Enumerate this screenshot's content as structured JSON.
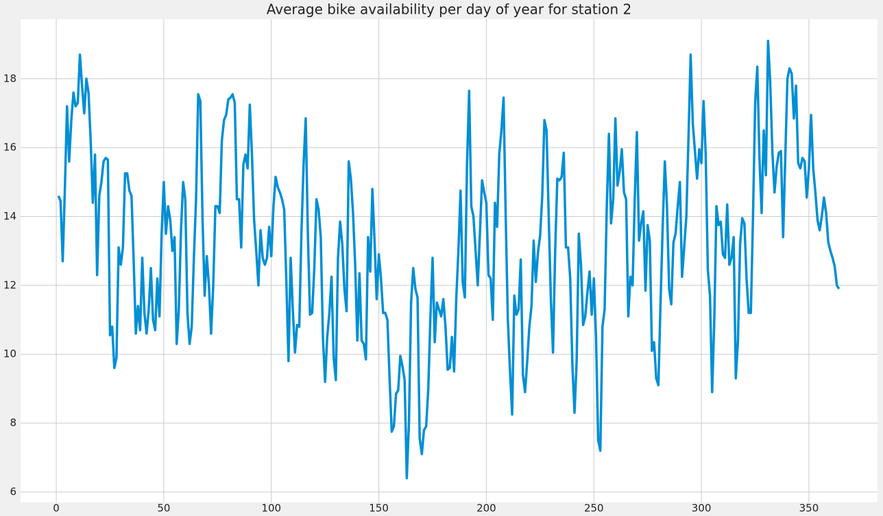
{
  "chart_data": {
    "type": "line",
    "title": "Average bike availability per day of year for station 2",
    "x": [
      1,
      2,
      3,
      4,
      5,
      6,
      7,
      8,
      9,
      10,
      11,
      12,
      13,
      14,
      15,
      16,
      17,
      18,
      19,
      20,
      21,
      22,
      23,
      24,
      25,
      26,
      27,
      28,
      29,
      30,
      31,
      32,
      33,
      34,
      35,
      36,
      37,
      38,
      39,
      40,
      41,
      42,
      43,
      44,
      45,
      46,
      47,
      48,
      49,
      50,
      51,
      52,
      53,
      54,
      55,
      56,
      57,
      58,
      59,
      60,
      61,
      62,
      63,
      64,
      65,
      66,
      67,
      68,
      69,
      70,
      71,
      72,
      73,
      74,
      75,
      76,
      77,
      78,
      79,
      80,
      81,
      82,
      83,
      84,
      85,
      86,
      87,
      88,
      89,
      90,
      91,
      92,
      93,
      94,
      95,
      96,
      97,
      98,
      99,
      100,
      101,
      102,
      103,
      104,
      105,
      106,
      107,
      108,
      109,
      110,
      111,
      112,
      113,
      114,
      115,
      116,
      117,
      118,
      119,
      120,
      121,
      122,
      123,
      124,
      125,
      126,
      127,
      128,
      129,
      130,
      131,
      132,
      133,
      134,
      135,
      136,
      137,
      138,
      139,
      140,
      141,
      142,
      143,
      144,
      145,
      146,
      147,
      148,
      149,
      150,
      151,
      152,
      153,
      154,
      155,
      156,
      157,
      158,
      159,
      160,
      161,
      162,
      163,
      164,
      165,
      166,
      167,
      168,
      169,
      170,
      171,
      172,
      173,
      174,
      175,
      176,
      177,
      178,
      179,
      180,
      181,
      182,
      183,
      184,
      185,
      186,
      187,
      188,
      189,
      190,
      191,
      192,
      193,
      194,
      195,
      196,
      197,
      198,
      199,
      200,
      201,
      202,
      203,
      204,
      205,
      206,
      207,
      208,
      209,
      210,
      211,
      212,
      213,
      214,
      215,
      216,
      217,
      218,
      219,
      220,
      221,
      222,
      223,
      224,
      225,
      226,
      227,
      228,
      229,
      230,
      231,
      232,
      233,
      234,
      235,
      236,
      237,
      238,
      239,
      240,
      241,
      242,
      243,
      244,
      245,
      246,
      247,
      248,
      249,
      250,
      251,
      252,
      253,
      254,
      255,
      256,
      257,
      258,
      259,
      260,
      261,
      262,
      263,
      264,
      265,
      266,
      267,
      268,
      269,
      270,
      271,
      272,
      273,
      274,
      275,
      276,
      277,
      278,
      279,
      280,
      281,
      282,
      283,
      284,
      285,
      286,
      287,
      288,
      289,
      290,
      291,
      292,
      293,
      294,
      295,
      296,
      297,
      298,
      299,
      300,
      301,
      302,
      303,
      304,
      305,
      306,
      307,
      308,
      309,
      310,
      311,
      312,
      313,
      314,
      315,
      316,
      317,
      318,
      319,
      320,
      321,
      322,
      323,
      324,
      325,
      326,
      327,
      328,
      329,
      330,
      331,
      332,
      333,
      334,
      335,
      336,
      337,
      338,
      339,
      340,
      341,
      342,
      343,
      344,
      345,
      346,
      347,
      348,
      349,
      350,
      351,
      352,
      353,
      354,
      355,
      356,
      357,
      358,
      359,
      360,
      361,
      362,
      363,
      364
    ],
    "series": [
      {
        "color": "#008fd5",
        "values": [
          14.6,
          14.45,
          12.7,
          14.8,
          17.2,
          15.6,
          16.8,
          17.6,
          17.2,
          17.3,
          18.7,
          17.8,
          17.0,
          18.0,
          17.6,
          16.2,
          14.4,
          15.8,
          12.3,
          14.6,
          15.0,
          15.6,
          15.7,
          15.65,
          10.55,
          10.8,
          9.6,
          9.9,
          13.1,
          12.6,
          13.1,
          15.25,
          15.25,
          14.75,
          14.6,
          12.7,
          10.6,
          11.4,
          10.7,
          12.8,
          11.2,
          10.6,
          11.3,
          12.5,
          11.0,
          10.7,
          12.2,
          11.1,
          13.5,
          15.0,
          13.5,
          14.3,
          13.9,
          13.0,
          13.4,
          10.3,
          11.3,
          13.6,
          15.0,
          14.5,
          11.2,
          10.3,
          10.8,
          12.8,
          14.5,
          17.55,
          17.35,
          14.0,
          11.7,
          12.85,
          12.0,
          10.6,
          12.0,
          14.3,
          14.3,
          14.1,
          16.2,
          16.8,
          16.95,
          17.4,
          17.45,
          17.55,
          17.3,
          14.5,
          14.5,
          13.1,
          15.5,
          15.8,
          15.4,
          17.25,
          15.8,
          13.9,
          13.0,
          12.0,
          13.6,
          12.8,
          12.6,
          12.8,
          13.7,
          12.85,
          14.3,
          15.15,
          14.85,
          14.7,
          14.5,
          14.2,
          12.1,
          9.8,
          12.8,
          11.3,
          10.05,
          10.85,
          10.8,
          13.5,
          15.5,
          16.85,
          13.5,
          11.15,
          11.2,
          12.5,
          14.5,
          14.2,
          13.4,
          10.5,
          9.2,
          10.5,
          11.2,
          12.25,
          9.9,
          9.25,
          12.8,
          13.85,
          13.2,
          11.9,
          11.25,
          15.6,
          15.1,
          14.1,
          12.6,
          10.4,
          12.35,
          10.4,
          10.3,
          9.85,
          13.4,
          12.4,
          14.8,
          13.3,
          11.6,
          12.9,
          12.2,
          11.2,
          11.2,
          11.0,
          9.3,
          7.75,
          7.9,
          8.85,
          8.95,
          9.95,
          9.65,
          9.25,
          6.4,
          8.0,
          11.5,
          12.5,
          11.9,
          11.65,
          7.55,
          7.1,
          7.8,
          7.9,
          9.0,
          11.1,
          12.8,
          10.35,
          11.5,
          11.3,
          11.1,
          11.6,
          10.8,
          9.55,
          9.6,
          10.5,
          9.5,
          11.6,
          13.0,
          14.75,
          12.1,
          11.65,
          15.5,
          17.65,
          14.3,
          14.0,
          13.0,
          12.0,
          13.5,
          15.05,
          14.7,
          14.4,
          12.3,
          12.2,
          11.0,
          14.4,
          13.7,
          15.8,
          16.5,
          17.45,
          14.0,
          11.0,
          9.5,
          8.25,
          11.7,
          11.15,
          11.3,
          12.75,
          9.4,
          8.9,
          9.8,
          10.8,
          11.4,
          13.3,
          12.1,
          12.95,
          13.45,
          14.6,
          16.8,
          16.5,
          14.0,
          11.6,
          10.05,
          13.0,
          15.1,
          15.05,
          15.15,
          15.85,
          13.1,
          13.1,
          12.2,
          9.7,
          8.3,
          9.8,
          13.5,
          12.6,
          10.85,
          11.1,
          11.8,
          12.4,
          11.15,
          12.2,
          10.5,
          7.5,
          7.2,
          10.8,
          11.3,
          14.3,
          16.4,
          13.8,
          14.5,
          16.85,
          14.9,
          15.3,
          15.95,
          14.7,
          14.5,
          11.1,
          12.25,
          12.0,
          14.5,
          16.45,
          13.3,
          13.8,
          14.15,
          11.85,
          13.75,
          13.3,
          10.1,
          10.35,
          9.3,
          9.1,
          11.5,
          13.7,
          15.6,
          14.3,
          11.9,
          11.45,
          13.25,
          13.5,
          14.3,
          15.0,
          12.25,
          13.1,
          14.0,
          16.3,
          18.7,
          16.7,
          15.9,
          15.1,
          15.95,
          15.55,
          17.35,
          15.8,
          12.45,
          11.7,
          8.9,
          11.0,
          14.3,
          13.75,
          13.85,
          12.9,
          12.8,
          14.35,
          12.6,
          12.8,
          13.4,
          9.3,
          10.4,
          13.2,
          13.95,
          13.8,
          12.2,
          11.2,
          11.2,
          14.0,
          17.3,
          18.35,
          15.7,
          14.1,
          16.5,
          15.2,
          19.1,
          17.9,
          15.9,
          14.7,
          15.45,
          15.85,
          15.9,
          13.4,
          15.7,
          18.0,
          18.3,
          18.15,
          16.85,
          17.8,
          15.55,
          15.4,
          15.7,
          15.6,
          14.55,
          15.4,
          16.95,
          15.4,
          14.7,
          13.9,
          13.6,
          14.0,
          14.55,
          14.1,
          13.25,
          13.0,
          12.8,
          12.55,
          12.0,
          11.9
        ]
      }
    ],
    "xlim": [
      -16.6,
      381.9
    ],
    "ylim": [
      5.7,
      19.73
    ],
    "xticks": [
      0,
      50,
      100,
      150,
      200,
      250,
      300,
      350
    ],
    "yticks": [
      6,
      8,
      10,
      12,
      14,
      16,
      18
    ],
    "grid": true
  }
}
